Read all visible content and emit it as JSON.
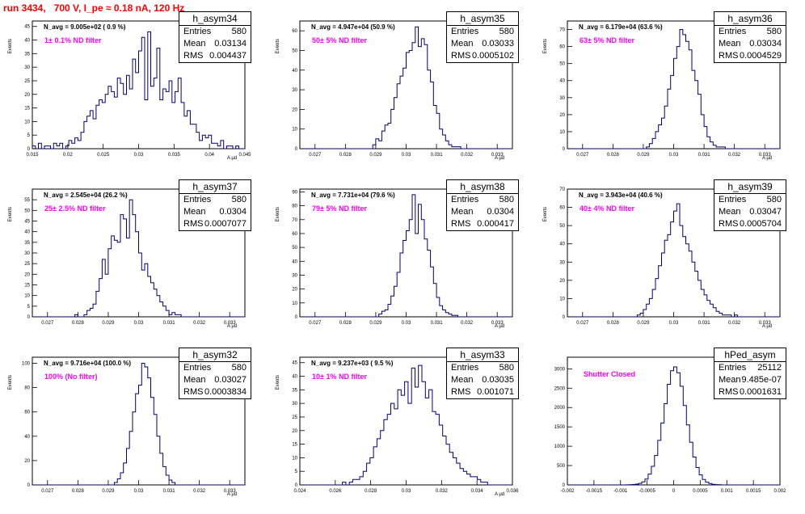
{
  "header": {
    "run_title": "run 3434,   700 V, I_pe ≈ 0.18 nA, 120 Hz"
  },
  "colors": {
    "histogram": "#00007a",
    "title": "#ff0000",
    "filter": "#ff00ff"
  },
  "chart_data": [
    {
      "type": "histogram",
      "name": "h_asym34",
      "stats": {
        "entries": "580",
        "mean": "0.03134",
        "rms": "0.004437"
      },
      "stat_labels": {
        "entries": "Entries",
        "mean": "Mean",
        "rms": "RMS"
      },
      "navg_label": "N_avg = 9.005e+02 ( 0.9 %)",
      "filter_label": "1± 0.1% ND filter",
      "ylabel": "Events",
      "xlabel": "A_{μd}",
      "xlim": [
        0.015,
        0.045
      ],
      "ylim": [
        0,
        47
      ],
      "xticks": [
        "0.015",
        "0.02",
        "0.025",
        "0.03",
        "0.035",
        "0.04",
        "0.045"
      ],
      "xtick_values": [
        0.015,
        0.02,
        0.025,
        0.03,
        0.035,
        0.04,
        0.045
      ],
      "yticks": [
        0,
        5,
        10,
        15,
        20,
        25,
        30,
        35,
        40,
        45
      ],
      "bin_edges_range": [
        0.015,
        0.045
      ],
      "counts": [
        1,
        0,
        2,
        0,
        1,
        1,
        0,
        2,
        1,
        2,
        0,
        1,
        3,
        2,
        4,
        3,
        6,
        10,
        12,
        14,
        11,
        16,
        18,
        17,
        20,
        23,
        21,
        19,
        26,
        24,
        20,
        27,
        22,
        33,
        28,
        36,
        41,
        18,
        43,
        23,
        26,
        37,
        18,
        22,
        21,
        25,
        17,
        21,
        26,
        17,
        12,
        14,
        9,
        9,
        6,
        3,
        5,
        4,
        5,
        2,
        2,
        1,
        3,
        0,
        1,
        1,
        0,
        1,
        0,
        0
      ]
    },
    {
      "type": "histogram",
      "name": "h_asym35",
      "stats": {
        "entries": "580",
        "mean": "0.03033",
        "rms": "0.0005102"
      },
      "stat_labels": {
        "entries": "Entries",
        "mean": "Mean",
        "rms": "RMS"
      },
      "navg_label": "N_avg = 4.947e+04 (50.9 %)",
      "filter_label": "50± 5% ND filter",
      "ylabel": "Events",
      "xlabel": "A_{μd}",
      "xlim": [
        0.0265,
        0.0335
      ],
      "ylim": [
        0,
        65
      ],
      "xticks": [
        "0.027",
        "0.028",
        "0.029",
        "0.03",
        "0.031",
        "0.032",
        "0.033"
      ],
      "xtick_values": [
        0.027,
        0.028,
        0.029,
        0.03,
        0.031,
        0.032,
        0.033
      ],
      "yticks": [
        0,
        10,
        20,
        30,
        40,
        50,
        60
      ],
      "bin_edges_range": [
        0.0289,
        0.0318
      ],
      "counts": [
        2,
        5,
        4,
        9,
        12,
        13,
        20,
        26,
        33,
        37,
        41,
        49,
        50,
        54,
        62,
        52,
        56,
        53,
        40,
        34,
        22,
        18,
        10,
        7,
        4,
        2,
        1,
        1,
        1
      ]
    },
    {
      "type": "histogram",
      "name": "h_asym36",
      "stats": {
        "entries": "580",
        "mean": "0.03034",
        "rms": "0.0004529"
      },
      "stat_labels": {
        "entries": "Entries",
        "mean": "Mean",
        "rms": "RMS"
      },
      "navg_label": "N_avg = 6.179e+04 (63.6 %)",
      "filter_label": "63± 5% ND filter",
      "ylabel": "Events",
      "xlabel": "A_{μd}",
      "xlim": [
        0.0265,
        0.0335
      ],
      "ylim": [
        0,
        75
      ],
      "xticks": [
        "0.027",
        "0.028",
        "0.029",
        "0.03",
        "0.031",
        "0.032",
        "0.033"
      ],
      "xtick_values": [
        0.027,
        0.028,
        0.029,
        0.03,
        0.031,
        0.032,
        0.033
      ],
      "yticks": [
        0,
        10,
        20,
        30,
        40,
        50,
        60,
        70
      ],
      "bin_edges_range": [
        0.0291,
        0.0317
      ],
      "counts": [
        1,
        3,
        6,
        10,
        14,
        18,
        25,
        35,
        43,
        53,
        60,
        70,
        67,
        63,
        58,
        46,
        40,
        32,
        20,
        13,
        7,
        4,
        2,
        1,
        1,
        1
      ]
    },
    {
      "type": "histogram",
      "name": "h_asym37",
      "stats": {
        "entries": "580",
        "mean": "0.0304",
        "rms": "0.0007077"
      },
      "stat_labels": {
        "entries": "Entries",
        "mean": "Mean",
        "rms": "RMS"
      },
      "navg_label": "N_avg = 2.545e+04 (26.2 %)",
      "filter_label": "25± 2.5% ND filter",
      "ylabel": "Events",
      "xlabel": "A_{μd}",
      "xlim": [
        0.0265,
        0.0335
      ],
      "ylim": [
        0,
        60
      ],
      "xticks": [
        "0.027",
        "0.028",
        "0.029",
        "0.03",
        "0.031",
        "0.032",
        "0.033"
      ],
      "xtick_values": [
        0.027,
        0.028,
        0.029,
        0.03,
        0.031,
        0.032,
        0.033
      ],
      "yticks": [
        0,
        5,
        10,
        15,
        20,
        25,
        30,
        35,
        40,
        45,
        50,
        55
      ],
      "bin_edges_range": [
        0.0279,
        0.0325
      ],
      "counts": [
        1,
        0,
        0,
        1,
        3,
        4,
        6,
        12,
        18,
        27,
        20,
        32,
        38,
        36,
        35,
        48,
        46,
        37,
        55,
        48,
        40,
        30,
        22,
        25,
        19,
        16,
        13,
        10,
        7,
        5,
        3,
        1,
        2,
        1,
        1,
        0,
        0,
        0,
        0,
        0,
        0,
        0,
        0,
        0,
        0,
        0
      ]
    },
    {
      "type": "histogram",
      "name": "h_asym38",
      "stats": {
        "entries": "580",
        "mean": "0.0304",
        "rms": "0.000417"
      },
      "stat_labels": {
        "entries": "Entries",
        "mean": "Mean",
        "rms": "RMS"
      },
      "navg_label": "N_avg = 7.731e+04 (79.6 %)",
      "filter_label": "79± 5% ND filter",
      "ylabel": "Events",
      "xlabel": "A_{μd}",
      "xlim": [
        0.0265,
        0.0335
      ],
      "ylim": [
        0,
        92
      ],
      "xticks": [
        "0.027",
        "0.028",
        "0.029",
        "0.03",
        "0.031",
        "0.032",
        "0.033"
      ],
      "xtick_values": [
        0.027,
        0.028,
        0.029,
        0.03,
        0.031,
        0.032,
        0.033
      ],
      "yticks": [
        0,
        10,
        20,
        30,
        40,
        50,
        60,
        70,
        80,
        90
      ],
      "bin_edges_range": [
        0.0291,
        0.0317
      ],
      "counts": [
        2,
        4,
        5,
        9,
        15,
        22,
        32,
        46,
        55,
        62,
        70,
        88,
        60,
        81,
        70,
        56,
        48,
        36,
        24,
        14,
        8,
        5,
        3,
        2,
        1,
        1
      ]
    },
    {
      "type": "histogram",
      "name": "h_asym39",
      "stats": {
        "entries": "580",
        "mean": "0.03047",
        "rms": "0.0005704"
      },
      "stat_labels": {
        "entries": "Entries",
        "mean": "Mean",
        "rms": "RMS"
      },
      "navg_label": "N_avg = 3.943e+04 (40.6 %)",
      "filter_label": "40± 4% ND filter",
      "ylabel": "Events",
      "xlabel": "A_{μd}",
      "xlim": [
        0.0265,
        0.0335
      ],
      "ylim": [
        0,
        70
      ],
      "xticks": [
        "0.027",
        "0.028",
        "0.029",
        "0.03",
        "0.031",
        "0.032",
        "0.033"
      ],
      "xtick_values": [
        0.027,
        0.028,
        0.029,
        0.03,
        0.031,
        0.032,
        0.033
      ],
      "yticks": [
        0,
        10,
        20,
        30,
        40,
        50,
        60,
        70
      ],
      "bin_edges_range": [
        0.0288,
        0.0322
      ],
      "counts": [
        1,
        2,
        4,
        7,
        10,
        15,
        21,
        28,
        35,
        42,
        45,
        52,
        58,
        62,
        50,
        44,
        40,
        36,
        30,
        25,
        20,
        15,
        12,
        9,
        7,
        5,
        3,
        2,
        1,
        1,
        1,
        0,
        1,
        0
      ]
    },
    {
      "type": "histogram",
      "name": "h_asym32",
      "stats": {
        "entries": "580",
        "mean": "0.03027",
        "rms": "0.0003834"
      },
      "stat_labels": {
        "entries": "Entries",
        "mean": "Mean",
        "rms": "RMS"
      },
      "navg_label": "N_avg = 9.716e+04 (100.0 %)",
      "filter_label": "100% (No filter)",
      "ylabel": "Events",
      "xlabel": "A_{μd}",
      "xlim": [
        0.0265,
        0.0335
      ],
      "ylim": [
        0,
        105
      ],
      "xticks": [
        "0.027",
        "0.028",
        "0.029",
        "0.03",
        "0.031",
        "0.032",
        "0.033"
      ],
      "xtick_values": [
        0.027,
        0.028,
        0.029,
        0.03,
        0.031,
        0.032,
        0.033
      ],
      "yticks": [
        0,
        20,
        40,
        60,
        80,
        100
      ],
      "bin_edges_range": [
        0.0292,
        0.0312
      ],
      "counts": [
        2,
        5,
        10,
        18,
        30,
        44,
        60,
        75,
        82,
        100,
        97,
        88,
        72,
        58,
        40,
        26,
        15,
        8,
        4,
        2
      ]
    },
    {
      "type": "histogram",
      "name": "h_asym33",
      "stats": {
        "entries": "580",
        "mean": "0.03035",
        "rms": "0.001071"
      },
      "stat_labels": {
        "entries": "Entries",
        "mean": "Mean",
        "rms": "RMS"
      },
      "navg_label": "N_avg = 9.237e+03 ( 9.5 %)",
      "filter_label": "10± 1% ND filter",
      "ylabel": "Events",
      "xlabel": "A_{μd}",
      "xlim": [
        0.024,
        0.036
      ],
      "ylim": [
        0,
        47
      ],
      "xticks": [
        "0.024",
        "0.026",
        "0.028",
        "0.03",
        "0.032",
        "0.034",
        "0.036"
      ],
      "xtick_values": [
        0.024,
        0.026,
        0.028,
        0.03,
        0.032,
        0.034,
        0.036
      ],
      "yticks": [
        0,
        5,
        10,
        15,
        20,
        25,
        30,
        35,
        40,
        45
      ],
      "bin_edges_range": [
        0.0264,
        0.0346
      ],
      "counts": [
        1,
        0,
        1,
        2,
        2,
        3,
        5,
        8,
        10,
        14,
        17,
        20,
        24,
        26,
        30,
        28,
        35,
        33,
        38,
        30,
        43,
        36,
        44,
        38,
        32,
        35,
        27,
        26,
        22,
        18,
        15,
        12,
        10,
        8,
        6,
        5,
        4,
        3,
        3,
        2,
        1,
        1
      ]
    },
    {
      "type": "histogram",
      "name": "hPed_asym",
      "stats": {
        "entries": "25112",
        "mean": "9.485e-07",
        "rms": "0.0001631"
      },
      "stat_labels": {
        "entries": "Entries",
        "mean": "Mean",
        "rms": "RMS"
      },
      "navg_label": "",
      "filter_label": "Shutter Closed",
      "ylabel": "",
      "xlabel": "",
      "xlim": [
        -0.002,
        0.002
      ],
      "ylim": [
        0,
        3300
      ],
      "xticks": [
        "-0.002",
        "-0.0015",
        "-0.001",
        "-0.0005",
        "0",
        "0.0005",
        "0.001",
        "0.0015",
        "0.002"
      ],
      "xtick_values": [
        -0.002,
        -0.0015,
        -0.001,
        -0.0005,
        0,
        0.0005,
        0.001,
        0.0015,
        0.002
      ],
      "yticks": [
        0,
        500,
        1000,
        1500,
        2000,
        2500,
        3000
      ],
      "bin_edges_range": [
        -0.0009,
        0.0009
      ],
      "counts": [
        2,
        5,
        10,
        20,
        40,
        80,
        150,
        280,
        480,
        760,
        1150,
        1600,
        2100,
        2600,
        2950,
        3050,
        2900,
        2550,
        2050,
        1550,
        1100,
        720,
        450,
        260,
        140,
        70,
        35,
        15,
        8,
        4
      ]
    }
  ]
}
